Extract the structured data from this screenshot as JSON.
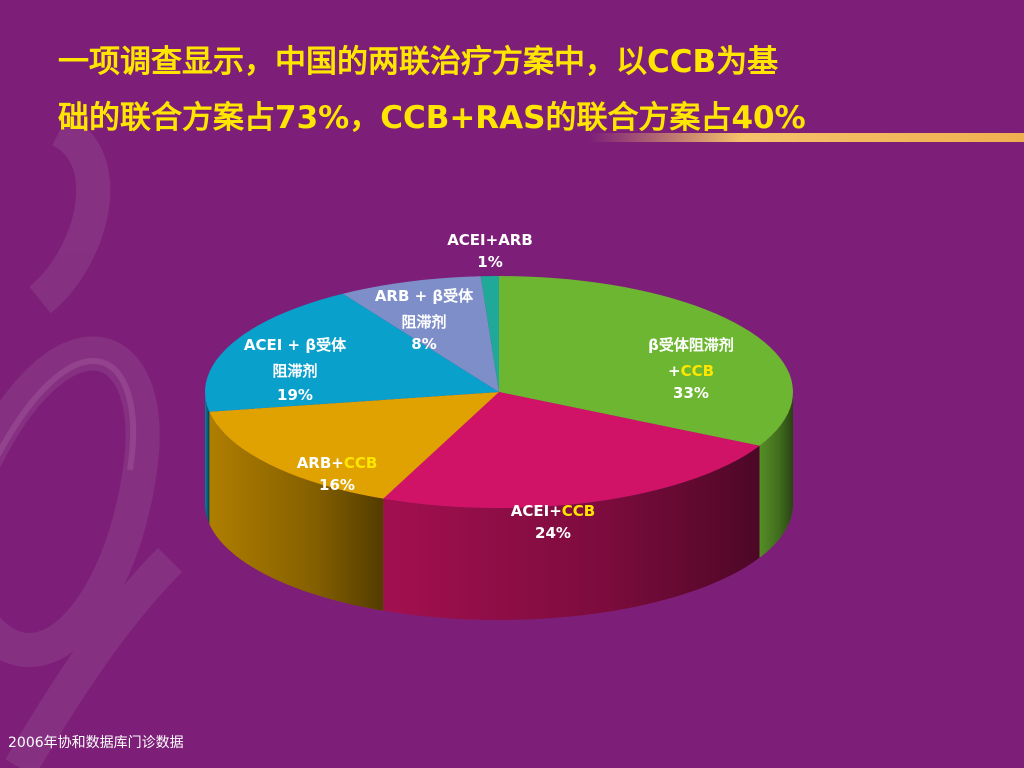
{
  "title": {
    "line1": "一项调查显示，中国的两联治疗方案中，以CCB为基",
    "line2": "础的联合方案占73%，CCB+RAS的联合方案占40%"
  },
  "footer": "2006年协和数据库门诊数据",
  "chart_data": {
    "type": "pie",
    "slices": [
      {
        "label": "β受体阻滞剂+CCB",
        "value": 33,
        "display": "33%",
        "color": "#6db631"
      },
      {
        "label": "ACEI+CCB",
        "value": 24,
        "display": "24%",
        "color": "#d11367"
      },
      {
        "label": "ARB+CCB",
        "value": 16,
        "display": "16%",
        "color": "#e0a200"
      },
      {
        "label": "ACEI + β受体阻滞剂",
        "value": 19,
        "display": "19%",
        "color": "#0aa0cc"
      },
      {
        "label": "ARB + β受体阻滞剂",
        "value": 8,
        "display": "8%",
        "color": "#7e8ec8"
      },
      {
        "label": "ACEI+ARB",
        "value": 1,
        "display": "1%",
        "color": "#20a898"
      }
    ]
  },
  "labels": {
    "acei_arb": {
      "name": "ACEI+ARB",
      "value": "1%"
    },
    "arb_beta": {
      "line1": "ARB + β受体",
      "line2": "阻滞剂",
      "value": "8%"
    },
    "acei_beta": {
      "line1": "ACEI + β受体",
      "line2": "阻滞剂",
      "value": "19%"
    },
    "beta_ccb": {
      "line1": "β受体阻滞剂",
      "prefix": "+",
      "ccb": "CCB",
      "value": "33%"
    },
    "arb_ccb": {
      "prefix": "ARB+",
      "ccb": "CCB",
      "value": "16%"
    },
    "acei_ccb": {
      "prefix": "ACEI+",
      "ccb": "CCB",
      "value": "24%"
    }
  }
}
